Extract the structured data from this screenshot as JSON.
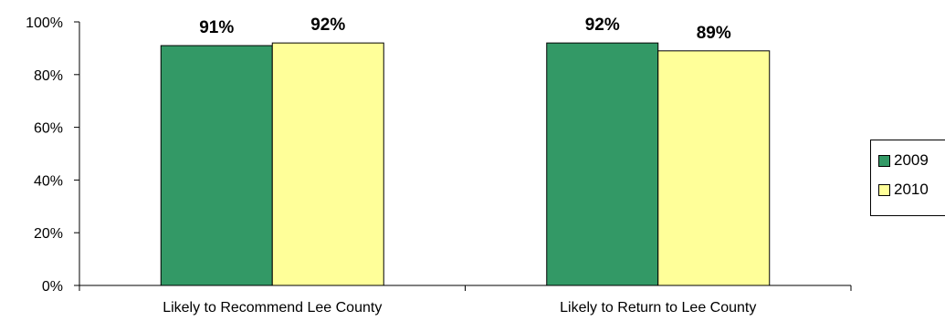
{
  "chart_data": {
    "type": "bar",
    "categories": [
      "Likely to Recommend Lee County",
      "Likely to Return to Lee County"
    ],
    "series": [
      {
        "name": "2009",
        "values": [
          91,
          92
        ],
        "labels": [
          "91%",
          "92%"
        ],
        "color": "#339966"
      },
      {
        "name": "2010",
        "values": [
          92,
          89
        ],
        "labels": [
          "92%",
          "89%"
        ],
        "color": "#FFFF99"
      }
    ],
    "ylim": [
      0,
      100
    ],
    "yticks": [
      "0%",
      "20%",
      "40%",
      "60%",
      "80%",
      "100%"
    ],
    "grid": false,
    "legend": "right"
  }
}
